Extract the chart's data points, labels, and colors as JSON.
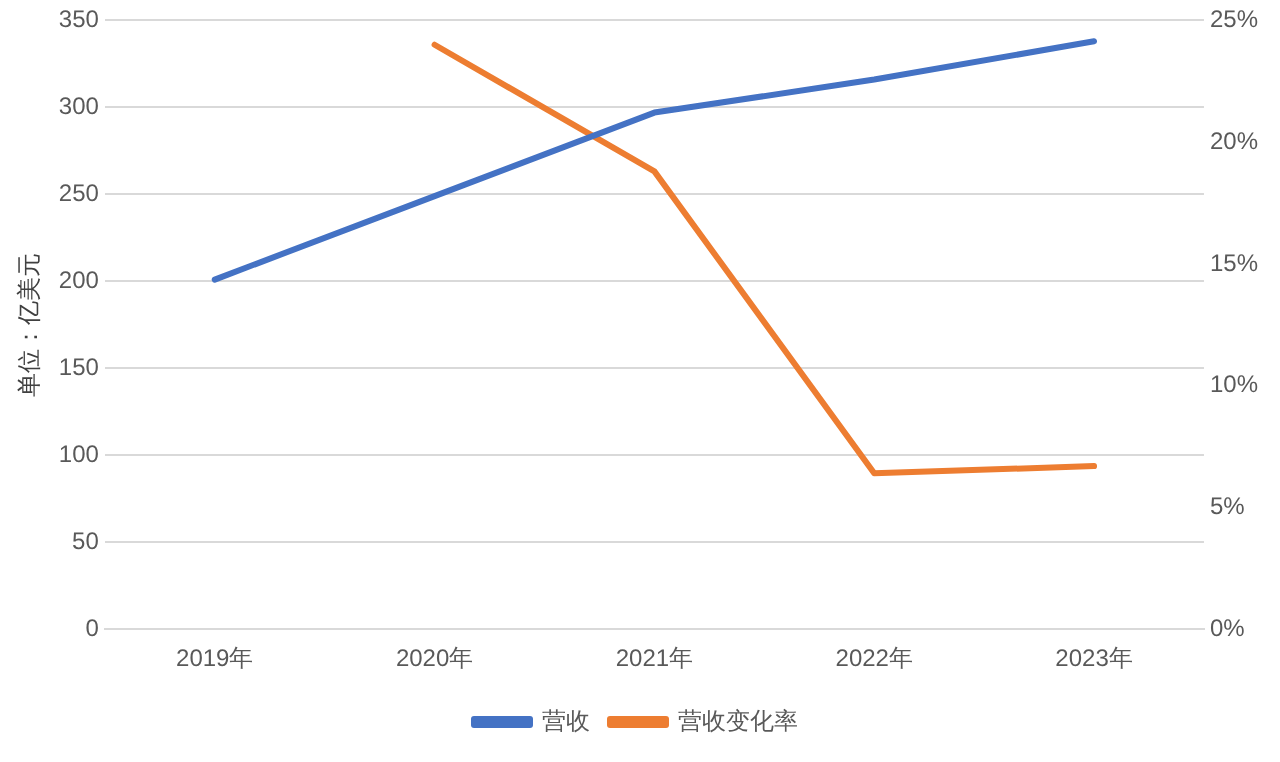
{
  "chart_data": {
    "type": "line",
    "ylabel": "单位：亿美元",
    "categories": [
      "2019年",
      "2020年",
      "2021年",
      "2022年",
      "2023年"
    ],
    "series": [
      {
        "name": "营收",
        "color": "#4472c4",
        "values": [
          201,
          249,
          297,
          316,
          338
        ]
      },
      {
        "name": "营收变化率",
        "color": "#ed7d31",
        "axis": "y2",
        "values": [
          null,
          24,
          18.8,
          6.4,
          6.7
        ]
      }
    ],
    "ylim": [
      0,
      350
    ],
    "yticks": [
      0,
      50,
      100,
      150,
      200,
      250,
      300,
      350
    ],
    "y2lim": [
      0,
      25
    ],
    "y2ticks": [
      {
        "value": 0,
        "label": "0%"
      },
      {
        "value": 5,
        "label": "5%"
      },
      {
        "value": 10,
        "label": "10%"
      },
      {
        "value": 15,
        "label": "15%"
      },
      {
        "value": 20,
        "label": "20%"
      },
      {
        "value": 25,
        "label": "25%"
      }
    ],
    "grid": "y",
    "legend": "bottom",
    "marker": "none",
    "line_style": "solid"
  }
}
